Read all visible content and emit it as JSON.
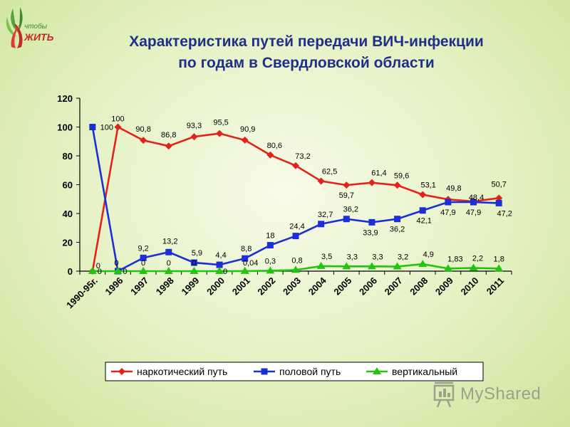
{
  "header": {
    "title_line1": "Характеристика путей передачи ВИЧ-инфекции",
    "title_line2": "по годам в Свердловской области"
  },
  "logo": {
    "text_small": "чтобы",
    "text_big": "ЖИТЬ",
    "icon": "ribbon-leaves-icon"
  },
  "watermark": {
    "text": "MyShared",
    "icon": "presentation-board-icon"
  },
  "chart_data": {
    "type": "line",
    "categories": [
      "1990-95г.",
      "1996",
      "1997",
      "1998",
      "1999",
      "2000",
      "2001",
      "2002",
      "2003",
      "2004",
      "2005",
      "2006",
      "2007",
      "2008",
      "2009",
      "2010",
      "2011"
    ],
    "ylim": [
      0,
      120
    ],
    "yticks": [
      "0",
      "20",
      "40",
      "60",
      "80",
      "100",
      "120"
    ],
    "grid": false,
    "legend_position": "bottom",
    "series": [
      {
        "name": "наркотический путь",
        "color": "#e2231a",
        "marker": "diamond",
        "values": [
          0,
          100,
          90.8,
          86.8,
          93.3,
          95.5,
          90.9,
          80.6,
          73.2,
          62.5,
          59.7,
          61.4,
          59.6,
          53.1,
          49.8,
          48.4,
          50.7
        ],
        "labels": [
          "0",
          "100",
          "90,8",
          "86,8",
          "93,3",
          "95,5",
          "90,9",
          "80,6",
          "73,2",
          "62,5",
          "59,7",
          "61,4",
          "59,6",
          "53,1",
          "49,8",
          "48,4",
          "50,7"
        ]
      },
      {
        "name": "половой путь",
        "color": "#1c2fd6",
        "marker": "square",
        "values": [
          100,
          0,
          9.2,
          13.2,
          5.9,
          4.4,
          8.8,
          18,
          24.4,
          32.7,
          36.2,
          33.9,
          36.2,
          42.1,
          47.9,
          47.9,
          47.2
        ],
        "labels": [
          "100",
          "0",
          "9,2",
          "13,2",
          "5,9",
          "4,4",
          "8,8",
          "18",
          "24,4",
          "32,7",
          "36,2",
          "33,9",
          "36,2",
          "42,1",
          "47,9",
          "47,9",
          "47,2"
        ]
      },
      {
        "name": "вертикальный",
        "color": "#22c40f",
        "marker": "triangle",
        "values": [
          0,
          0,
          0,
          0,
          0,
          0,
          0.04,
          0.3,
          0.8,
          3.5,
          3.3,
          3.3,
          3.2,
          4.9,
          1.83,
          2.2,
          1.8
        ],
        "labels": [
          "0",
          "0",
          "0",
          "0",
          "0",
          "0",
          "0,04",
          "0,3",
          "0,8",
          "3,5",
          "3,3",
          "3,3",
          "3,2",
          "4,9",
          "1,83",
          "2,2",
          "1,8"
        ]
      }
    ]
  }
}
